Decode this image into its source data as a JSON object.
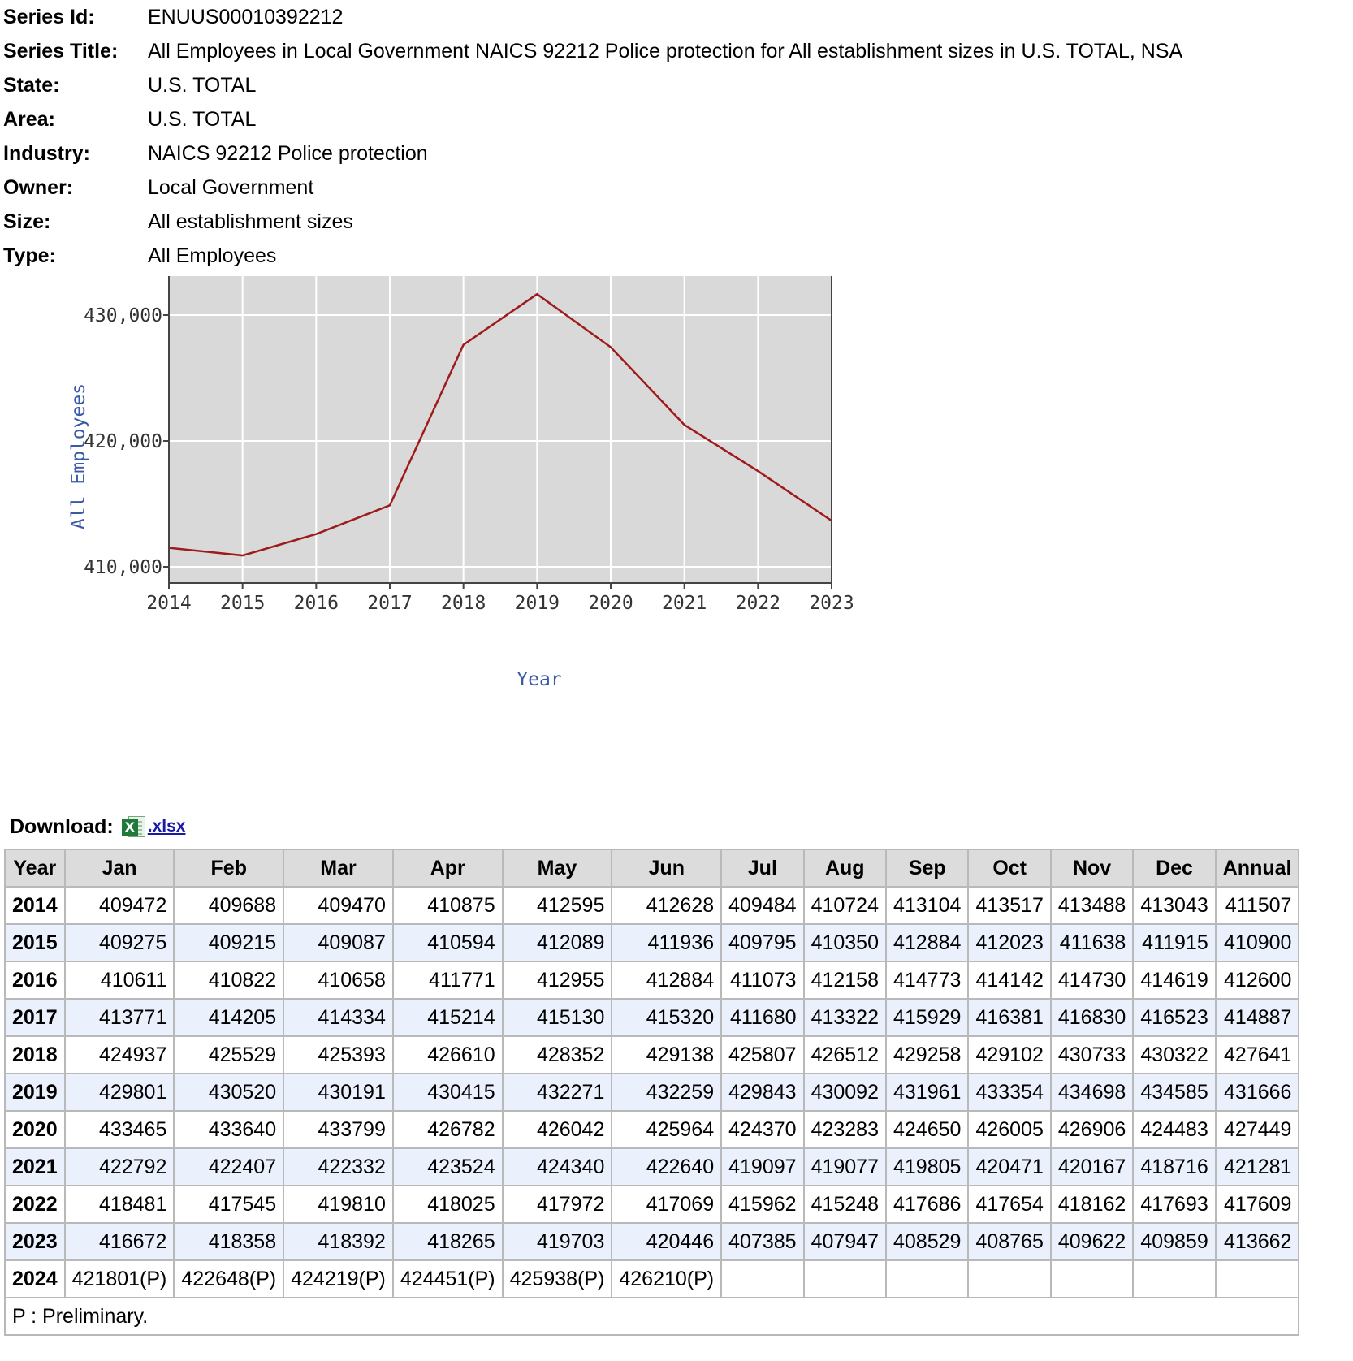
{
  "header": {
    "rows": [
      {
        "label": "Series Id:",
        "value": "ENUUS00010392212"
      },
      {
        "label": "Series Title:",
        "value": "All Employees in Local Government NAICS 92212 Police protection for All establishment sizes in U.S. TOTAL, NSA"
      },
      {
        "label": "State:",
        "value": "U.S. TOTAL"
      },
      {
        "label": "Area:",
        "value": "U.S. TOTAL"
      },
      {
        "label": "Industry:",
        "value": "NAICS 92212 Police protection"
      },
      {
        "label": "Owner:",
        "value": "Local Government"
      },
      {
        "label": "Size:",
        "value": "All establishment sizes"
      },
      {
        "label": "Type:",
        "value": "All Employees"
      }
    ]
  },
  "chart_data": {
    "type": "line",
    "title": "",
    "xlabel": "Year",
    "ylabel": "All Employees",
    "x": [
      2014,
      2015,
      2016,
      2017,
      2018,
      2019,
      2020,
      2021,
      2022,
      2023
    ],
    "series": [
      {
        "values": [
          411507,
          410900,
          412600,
          414887,
          427641,
          431666,
          427449,
          421281,
          417609,
          413662
        ]
      }
    ],
    "xlim": [
      2014,
      2023
    ],
    "ylim": [
      410000,
      430000
    ],
    "yticks": [
      410000,
      420000,
      430000
    ],
    "ytick_labels": [
      "410,000",
      "420,000",
      "430,000"
    ],
    "xtick_labels": [
      "2014",
      "2015",
      "2016",
      "2017",
      "2018",
      "2019",
      "2020",
      "2021",
      "2022",
      "2023"
    ],
    "grid": true,
    "line_color": "#9e1b1b",
    "plot_background": "#d9d9d9"
  },
  "download": {
    "label": "Download:",
    "icon": "excel-icon",
    "icon_glyph": "X",
    "link_text": ".xlsx"
  },
  "table": {
    "columns": [
      "Year",
      "Jan",
      "Feb",
      "Mar",
      "Apr",
      "May",
      "Jun",
      "Jul",
      "Aug",
      "Sep",
      "Oct",
      "Nov",
      "Dec",
      "Annual"
    ],
    "rows": [
      {
        "year": "2014",
        "cells": [
          "409472",
          "409688",
          "409470",
          "410875",
          "412595",
          "412628",
          "409484",
          "410724",
          "413104",
          "413517",
          "413488",
          "413043",
          "411507"
        ]
      },
      {
        "year": "2015",
        "cells": [
          "409275",
          "409215",
          "409087",
          "410594",
          "412089",
          "411936",
          "409795",
          "410350",
          "412884",
          "412023",
          "411638",
          "411915",
          "410900"
        ]
      },
      {
        "year": "2016",
        "cells": [
          "410611",
          "410822",
          "410658",
          "411771",
          "412955",
          "412884",
          "411073",
          "412158",
          "414773",
          "414142",
          "414730",
          "414619",
          "412600"
        ]
      },
      {
        "year": "2017",
        "cells": [
          "413771",
          "414205",
          "414334",
          "415214",
          "415130",
          "415320",
          "411680",
          "413322",
          "415929",
          "416381",
          "416830",
          "416523",
          "414887"
        ]
      },
      {
        "year": "2018",
        "cells": [
          "424937",
          "425529",
          "425393",
          "426610",
          "428352",
          "429138",
          "425807",
          "426512",
          "429258",
          "429102",
          "430733",
          "430322",
          "427641"
        ]
      },
      {
        "year": "2019",
        "cells": [
          "429801",
          "430520",
          "430191",
          "430415",
          "432271",
          "432259",
          "429843",
          "430092",
          "431961",
          "433354",
          "434698",
          "434585",
          "431666"
        ]
      },
      {
        "year": "2020",
        "cells": [
          "433465",
          "433640",
          "433799",
          "426782",
          "426042",
          "425964",
          "424370",
          "423283",
          "424650",
          "426005",
          "426906",
          "424483",
          "427449"
        ]
      },
      {
        "year": "2021",
        "cells": [
          "422792",
          "422407",
          "422332",
          "423524",
          "424340",
          "422640",
          "419097",
          "419077",
          "419805",
          "420471",
          "420167",
          "418716",
          "421281"
        ]
      },
      {
        "year": "2022",
        "cells": [
          "418481",
          "417545",
          "419810",
          "418025",
          "417972",
          "417069",
          "415962",
          "415248",
          "417686",
          "417654",
          "418162",
          "417693",
          "417609"
        ]
      },
      {
        "year": "2023",
        "cells": [
          "416672",
          "418358",
          "418392",
          "418265",
          "419703",
          "420446",
          "407385",
          "407947",
          "408529",
          "408765",
          "409622",
          "409859",
          "413662"
        ]
      },
      {
        "year": "2024",
        "cells": [
          "421801(P)",
          "422648(P)",
          "424219(P)",
          "424451(P)",
          "425938(P)",
          "426210(P)",
          "",
          "",
          "",
          "",
          "",
          "",
          ""
        ]
      }
    ],
    "footnote": "P : Preliminary."
  }
}
